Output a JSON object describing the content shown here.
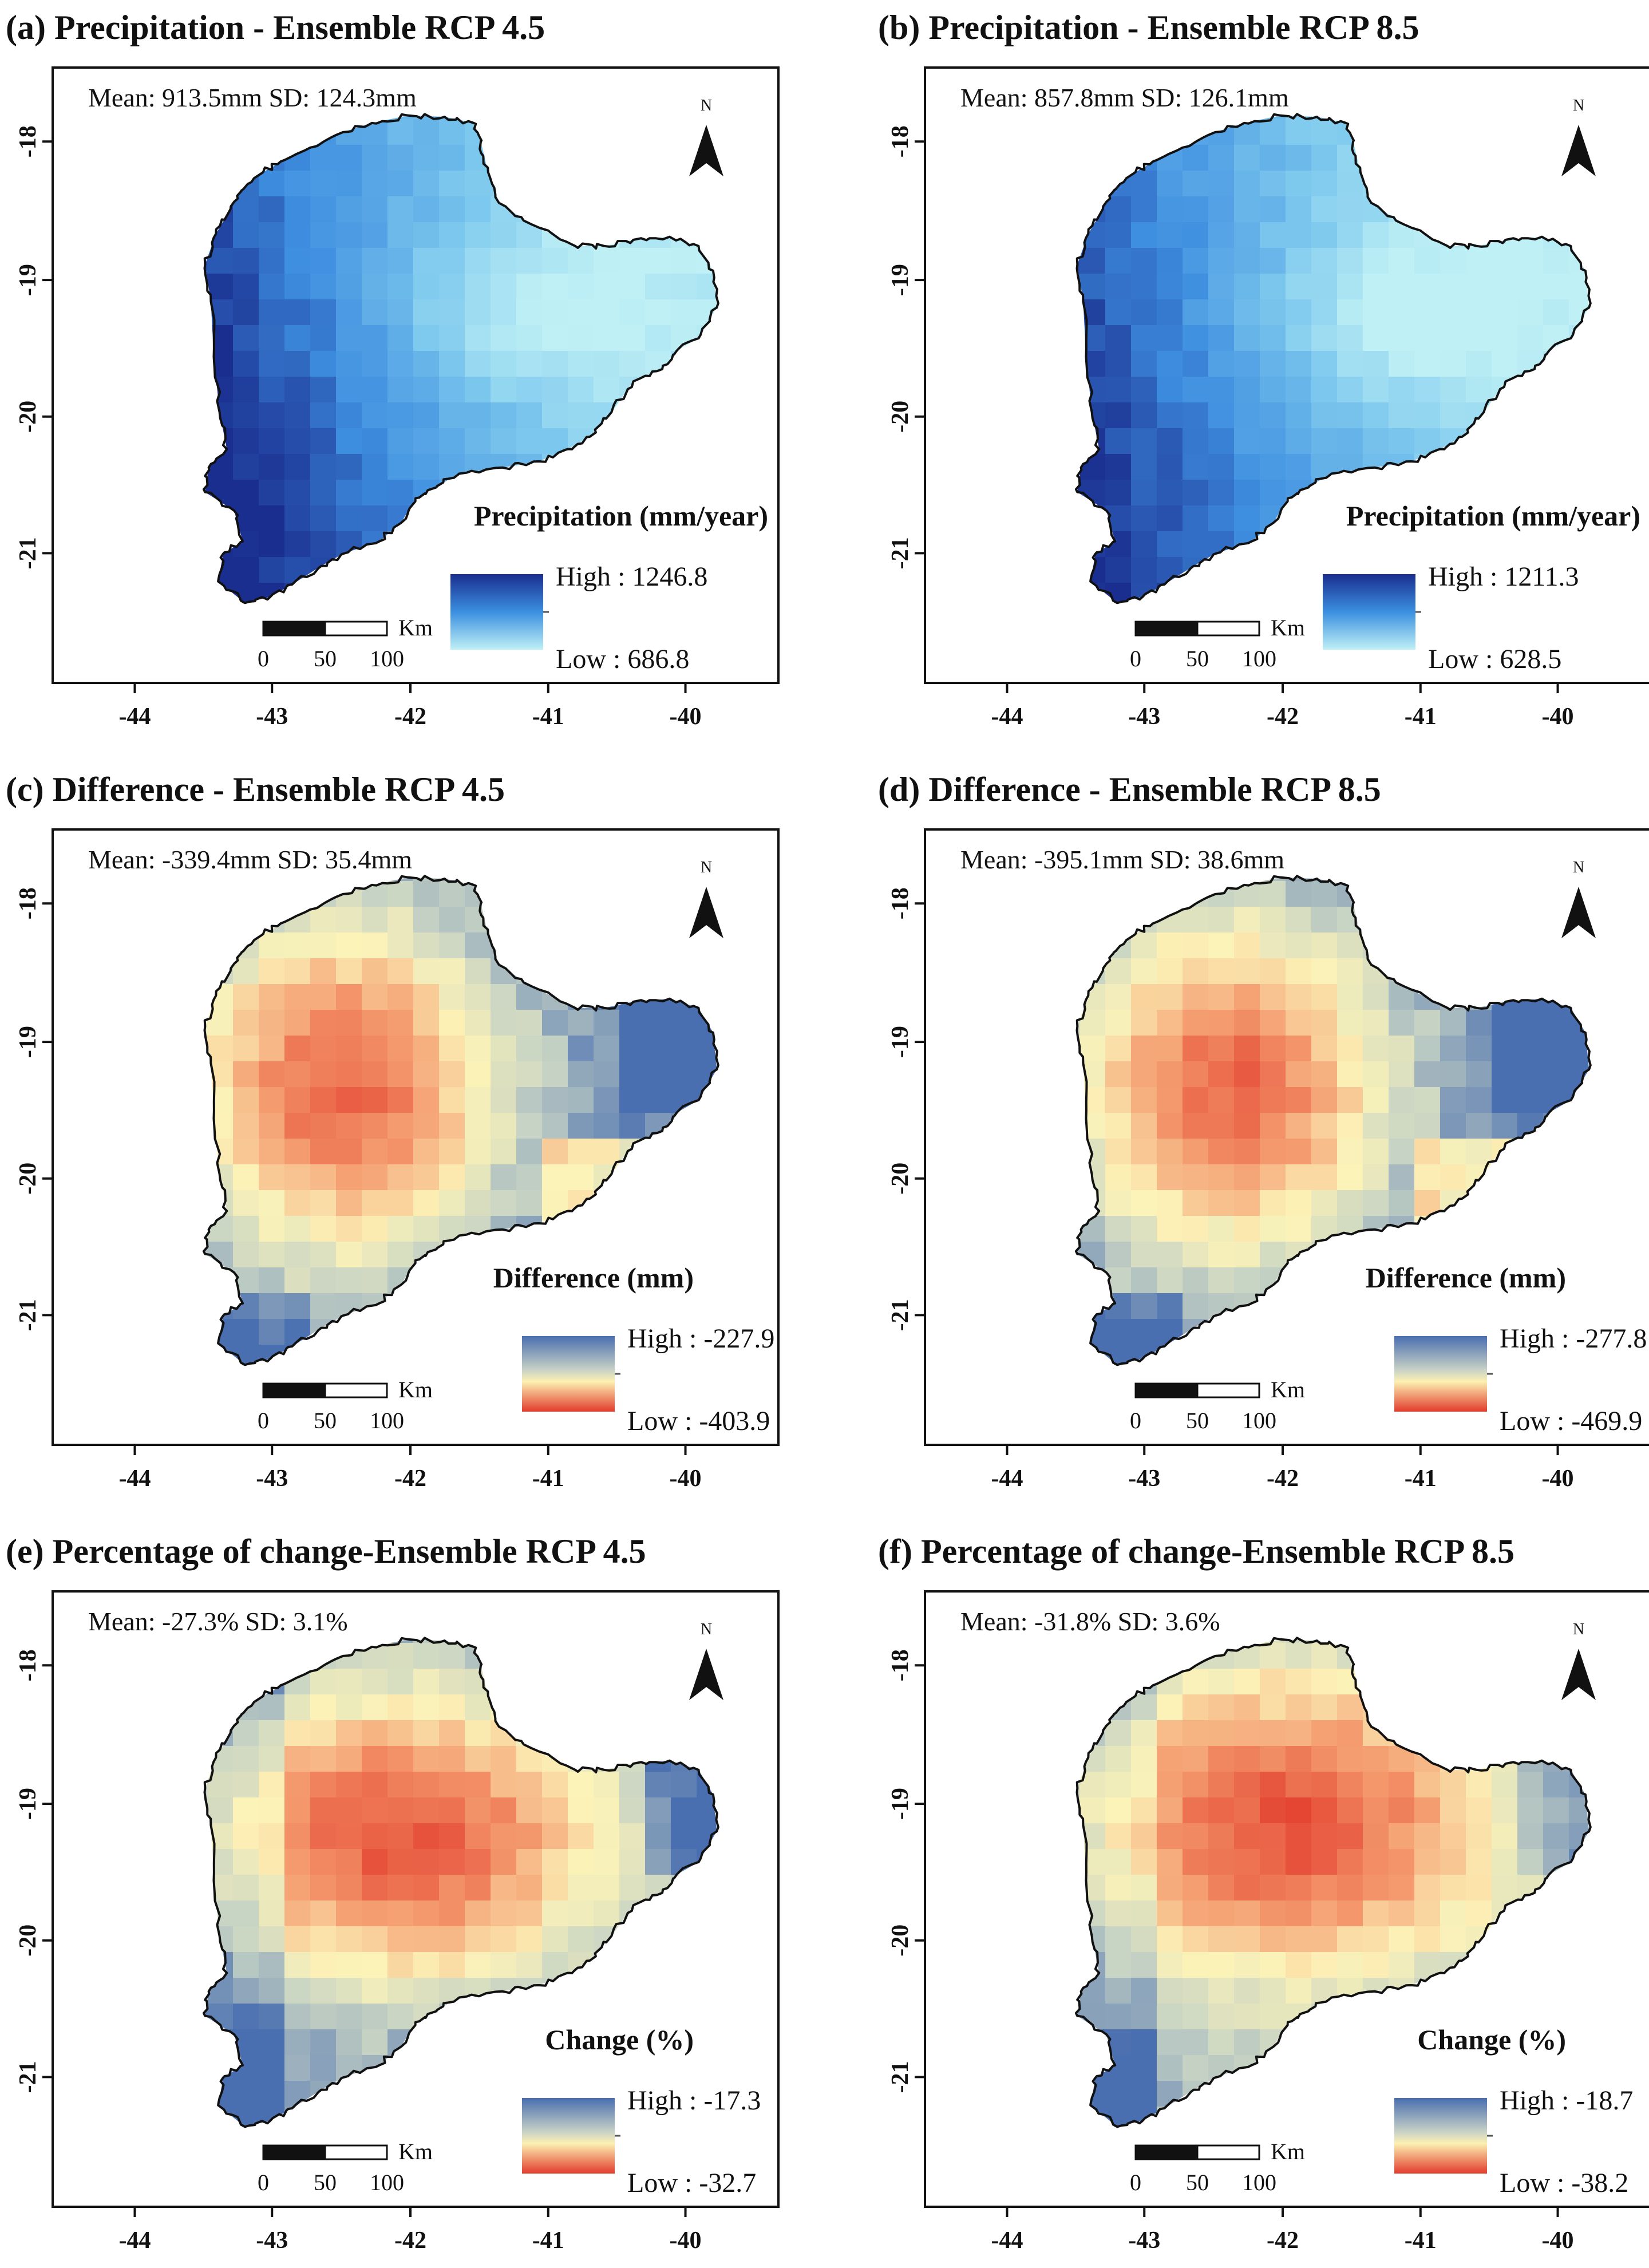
{
  "figure": {
    "x_ticks": [
      "-44",
      "-43",
      "-42",
      "-41",
      "-40"
    ],
    "y_ticks": [
      "-18",
      "-19",
      "-20",
      "-21"
    ],
    "north_label": "N",
    "scalebar": {
      "unit": "Km",
      "labels": [
        "0",
        "50",
        "100"
      ]
    }
  },
  "panels": [
    {
      "letter": "(a)",
      "title": "Precipitation - Ensemble RCP 4.5",
      "stats": "Mean: 913.5mm SD: 124.3mm",
      "legend_title": "Precipitation (mm/year)",
      "high_label": "High : 1246.8",
      "low_label": "Low : 686.8",
      "high": 1246.8,
      "low": 686.8,
      "mean": 913.5,
      "sd": 124.3,
      "palette": "blues",
      "high_color": "#1a2e8f",
      "low_color": "#bff0f5"
    },
    {
      "letter": "(b)",
      "title": "Precipitation - Ensemble RCP 8.5",
      "stats": "Mean: 857.8mm SD: 126.1mm",
      "legend_title": "Precipitation (mm/year)",
      "high_label": "High : 1211.3",
      "low_label": "Low : 628.5",
      "high": 1211.3,
      "low": 628.5,
      "mean": 857.8,
      "sd": 126.1,
      "palette": "blues",
      "high_color": "#1a2e8f",
      "low_color": "#bff0f5"
    },
    {
      "letter": "(c)",
      "title": "Difference - Ensemble RCP 4.5",
      "stats": "Mean: -339.4mm SD: 35.4mm",
      "legend_title": "Difference (mm)",
      "high_label": "High : -227.9",
      "low_label": "Low : -403.9",
      "high": -227.9,
      "low": -403.9,
      "mean": -339.4,
      "sd": 35.4,
      "palette": "diverging",
      "high_color": "#4a6fb0",
      "low_color": "#e23b2b"
    },
    {
      "letter": "(d)",
      "title": "Difference - Ensemble RCP 8.5",
      "stats": "Mean: -395.1mm SD: 38.6mm",
      "legend_title": "Difference (mm)",
      "high_label": "High : -277.8",
      "low_label": "Low : -469.9",
      "high": -277.8,
      "low": -469.9,
      "mean": -395.1,
      "sd": 38.6,
      "palette": "diverging",
      "high_color": "#4a6fb0",
      "low_color": "#e23b2b"
    },
    {
      "letter": "(e)",
      "title": "Percentage of change-Ensemble RCP 4.5",
      "stats": "Mean: -27.3% SD: 3.1%",
      "legend_title": "Change (%)",
      "high_label": "High : -17.3",
      "low_label": "Low : -32.7",
      "high": -17.3,
      "low": -32.7,
      "mean": -27.3,
      "sd": 3.1,
      "palette": "diverging",
      "high_color": "#4a6fb0",
      "low_color": "#e23b2b"
    },
    {
      "letter": "(f)",
      "title": "Percentage of change-Ensemble RCP 8.5",
      "stats": "Mean: -31.8% SD: 3.6%",
      "legend_title": "Change (%)",
      "high_label": "High : -18.7",
      "low_label": "Low : -38.2",
      "high": -18.7,
      "low": -38.2,
      "mean": -31.8,
      "sd": 3.6,
      "palette": "diverging",
      "high_color": "#4a6fb0",
      "low_color": "#e23b2b"
    }
  ]
}
